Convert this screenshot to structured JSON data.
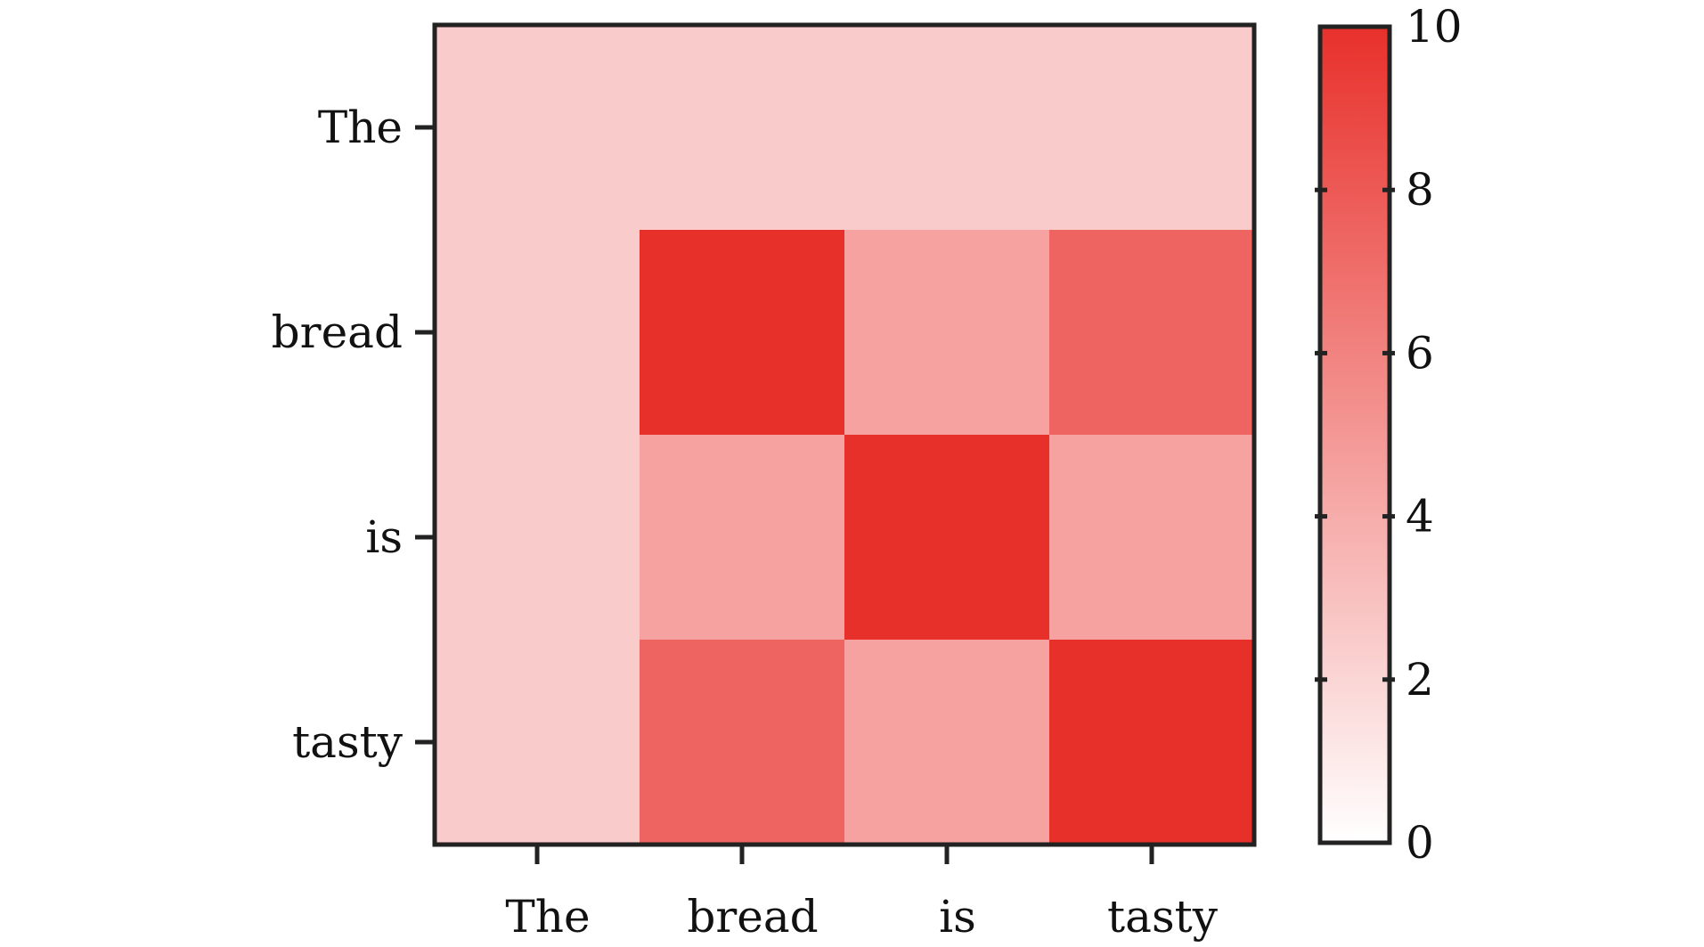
{
  "chart_data": {
    "type": "heatmap",
    "title": "",
    "xlabel": "",
    "ylabel": "",
    "x_categories": [
      "The",
      "bread",
      "is",
      "tasty"
    ],
    "y_categories": [
      "The",
      "bread",
      "is",
      "tasty"
    ],
    "values": [
      [
        2.5,
        2.5,
        2.5,
        2.5
      ],
      [
        2.5,
        10,
        4.5,
        7.5
      ],
      [
        2.5,
        4.5,
        10,
        4.5
      ],
      [
        2.5,
        7.5,
        4.5,
        10
      ]
    ],
    "colorbar": {
      "min": 0,
      "max": 10,
      "ticks": [
        0,
        2,
        4,
        6,
        8,
        10
      ],
      "tick_labels": [
        "0",
        "2",
        "4",
        "6",
        "8",
        "10"
      ],
      "color_low": "#ffffff",
      "color_high": "#e8302b",
      "position": "right"
    },
    "grid": false,
    "legend": "none"
  }
}
